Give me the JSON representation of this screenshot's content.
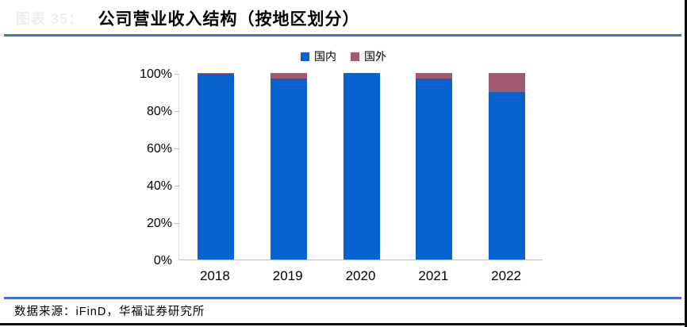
{
  "frame": {
    "ghost_label": "图表 35：",
    "title": "公司营业收入结构（按地区划分）",
    "source_note": "数据来源：iFinD，华福证券研究所"
  },
  "colors": {
    "domestic_blue": "#0762D0",
    "foreign_mauve": "#9F5B70",
    "rule_blue": "#4472C4",
    "axis_gray": "#BFBFBF",
    "frame_black": "#0A0A0A"
  },
  "chart_data": {
    "type": "bar",
    "stacked": true,
    "percent_stacked": true,
    "title": "公司营业收入结构（按地区划分）",
    "categories": [
      "2018",
      "2019",
      "2020",
      "2021",
      "2022"
    ],
    "series": [
      {
        "name": "国内",
        "color": "#0762D0",
        "values": [
          99.5,
          97,
          100,
          97,
          90
        ]
      },
      {
        "name": "国外",
        "color": "#9F5B70",
        "values": [
          0.5,
          3,
          0,
          3,
          10
        ]
      }
    ],
    "xlabel": "",
    "ylabel": "",
    "ylim": [
      0,
      100
    ],
    "yticks": [
      "0%",
      "20%",
      "40%",
      "60%",
      "80%",
      "100%"
    ],
    "legend_position": "top-center",
    "grid": false
  }
}
